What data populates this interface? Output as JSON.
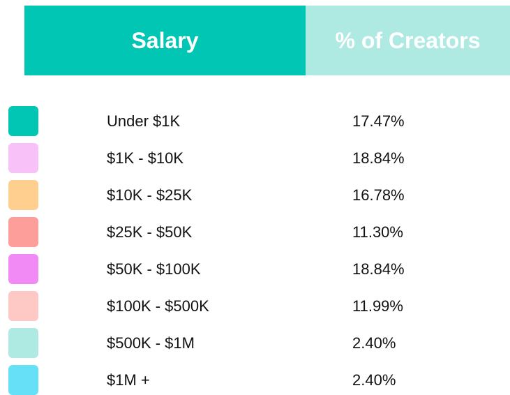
{
  "table": {
    "header": [
      "Salary",
      "% of Creators"
    ],
    "header_colors": [
      "#02c6b4",
      "#aeeae2"
    ],
    "rows": [
      {
        "color": "#02c6b4",
        "label": "Under $1K",
        "value": "17.47%"
      },
      {
        "color": "#f8c2f8",
        "label": "$1K - $10K",
        "value": "18.84%"
      },
      {
        "color": "#fecf8e",
        "label": "$10K - $25K",
        "value": "16.78%"
      },
      {
        "color": "#fe9e9a",
        "label": "$25K - $50K",
        "value": "11.30%"
      },
      {
        "color": "#f28af5",
        "label": "$50K - $100K",
        "value": "18.84%"
      },
      {
        "color": "#fec8c4",
        "label": "$100K - $500K",
        "value": "11.99%"
      },
      {
        "color": "#aeeae2",
        "label": "$500K - $1M",
        "value": "2.40%"
      },
      {
        "color": "#66e0f7",
        "label": "$1M +",
        "value": "2.40%"
      }
    ]
  }
}
